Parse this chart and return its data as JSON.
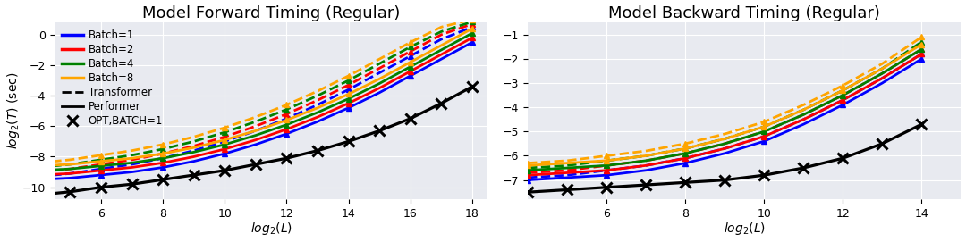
{
  "title_left": "Model Forward Timing (Regular)",
  "title_right": "Model Backward Timing (Regular)",
  "xlabel": "$log_2(L)$",
  "ylabel": "$log_2(T)$ (sec)",
  "colors": {
    "batch1": "#0000ff",
    "batch2": "#ff0000",
    "batch4": "#008000",
    "batch8": "#ffa500"
  },
  "left": {
    "xlim": [
      4.5,
      18.5
    ],
    "ylim": [
      -10.8,
      0.8
    ],
    "yticks": [
      0,
      -2,
      -4,
      -6,
      -8,
      -10
    ],
    "xticks": [
      6,
      8,
      10,
      12,
      14,
      16,
      18
    ],
    "performer_b1_x": [
      4,
      5,
      6,
      7,
      8,
      9,
      10,
      11,
      12,
      13,
      14,
      15,
      16,
      17,
      18
    ],
    "performer_b1_y": [
      -9.5,
      -9.4,
      -9.2,
      -9.0,
      -8.7,
      -8.3,
      -7.8,
      -7.2,
      -6.5,
      -5.7,
      -4.8,
      -3.8,
      -2.7,
      -1.6,
      -0.5
    ],
    "performer_b2_x": [
      4,
      5,
      6,
      7,
      8,
      9,
      10,
      11,
      12,
      13,
      14,
      15,
      16,
      17,
      18
    ],
    "performer_b2_y": [
      -9.2,
      -9.1,
      -8.9,
      -8.7,
      -8.4,
      -8.0,
      -7.5,
      -6.9,
      -6.2,
      -5.4,
      -4.5,
      -3.5,
      -2.4,
      -1.3,
      -0.2
    ],
    "performer_b4_x": [
      4,
      5,
      6,
      7,
      8,
      9,
      10,
      11,
      12,
      13,
      14,
      15,
      16,
      17,
      18
    ],
    "performer_b4_y": [
      -8.9,
      -8.8,
      -8.6,
      -8.4,
      -8.1,
      -7.7,
      -7.2,
      -6.6,
      -5.9,
      -5.1,
      -4.2,
      -3.2,
      -2.1,
      -1.0,
      0.1
    ],
    "performer_b8_x": [
      4,
      5,
      6,
      7,
      8,
      9,
      10,
      11,
      12,
      13,
      14,
      15,
      16,
      17,
      18
    ],
    "performer_b8_y": [
      -8.6,
      -8.5,
      -8.3,
      -8.1,
      -7.8,
      -7.4,
      -6.9,
      -6.3,
      -5.6,
      -4.8,
      -3.9,
      -2.9,
      -1.8,
      -0.7,
      0.4
    ],
    "transformer_b1_x": [
      4,
      5,
      6,
      7,
      8,
      9,
      10,
      11,
      12,
      13,
      14,
      15,
      16,
      17,
      18
    ],
    "transformer_b1_y": [
      -9.3,
      -9.1,
      -8.8,
      -8.5,
      -8.1,
      -7.6,
      -7.0,
      -6.3,
      -5.5,
      -4.6,
      -3.6,
      -2.5,
      -1.4,
      -0.3,
      0.5
    ],
    "transformer_b2_x": [
      4,
      5,
      6,
      7,
      8,
      9,
      10,
      11,
      12,
      13,
      14,
      15,
      16,
      17,
      18
    ],
    "transformer_b2_y": [
      -9.0,
      -8.8,
      -8.5,
      -8.2,
      -7.8,
      -7.3,
      -6.7,
      -6.0,
      -5.2,
      -4.3,
      -3.3,
      -2.2,
      -1.1,
      0.0,
      0.7
    ],
    "transformer_b4_x": [
      4,
      5,
      6,
      7,
      8,
      9,
      10,
      11,
      12,
      13,
      14,
      15,
      16,
      17,
      18
    ],
    "transformer_b4_y": [
      -8.7,
      -8.5,
      -8.2,
      -7.9,
      -7.5,
      -7.0,
      -6.4,
      -5.7,
      -4.9,
      -4.0,
      -3.0,
      -1.9,
      -0.8,
      0.2,
      0.85
    ],
    "transformer_b8_x": [
      4,
      5,
      6,
      7,
      8,
      9,
      10,
      11,
      12,
      13,
      14,
      15,
      16,
      17,
      18
    ],
    "transformer_b8_y": [
      -8.4,
      -8.2,
      -7.9,
      -7.6,
      -7.2,
      -6.7,
      -6.1,
      -5.4,
      -4.6,
      -3.7,
      -2.7,
      -1.6,
      -0.5,
      0.5,
      1.0
    ],
    "opt_x": [
      4,
      5,
      6,
      7,
      8,
      9,
      10,
      11,
      12,
      13,
      14,
      15,
      16,
      17,
      18
    ],
    "opt_y": [
      -10.5,
      -10.3,
      -10.0,
      -9.8,
      -9.5,
      -9.2,
      -8.9,
      -8.5,
      -8.1,
      -7.6,
      -7.0,
      -6.3,
      -5.5,
      -4.5,
      -3.4
    ]
  },
  "right": {
    "xlim": [
      4.0,
      15.0
    ],
    "ylim": [
      -7.8,
      -0.5
    ],
    "yticks": [
      -1,
      -2,
      -3,
      -4,
      -5,
      -6,
      -7
    ],
    "xticks": [
      6,
      8,
      10,
      12,
      14
    ],
    "performer_b1_x": [
      4,
      5,
      6,
      7,
      8,
      9,
      10,
      11,
      12,
      13,
      14
    ],
    "performer_b1_y": [
      -7.0,
      -6.9,
      -6.8,
      -6.6,
      -6.3,
      -5.9,
      -5.4,
      -4.7,
      -3.9,
      -3.0,
      -2.0
    ],
    "performer_b2_x": [
      4,
      5,
      6,
      7,
      8,
      9,
      10,
      11,
      12,
      13,
      14
    ],
    "performer_b2_y": [
      -6.8,
      -6.7,
      -6.6,
      -6.4,
      -6.1,
      -5.7,
      -5.2,
      -4.5,
      -3.7,
      -2.8,
      -1.8
    ],
    "performer_b4_x": [
      4,
      5,
      6,
      7,
      8,
      9,
      10,
      11,
      12,
      13,
      14
    ],
    "performer_b4_y": [
      -6.6,
      -6.5,
      -6.4,
      -6.2,
      -5.9,
      -5.5,
      -5.0,
      -4.3,
      -3.5,
      -2.6,
      -1.6
    ],
    "performer_b8_x": [
      4,
      5,
      6,
      7,
      8,
      9,
      10,
      11,
      12,
      13,
      14
    ],
    "performer_b8_y": [
      -6.4,
      -6.3,
      -6.2,
      -6.0,
      -5.7,
      -5.3,
      -4.8,
      -4.1,
      -3.3,
      -2.4,
      -1.4
    ],
    "transformer_b1_x": [
      4,
      5,
      6,
      7,
      8,
      9,
      10,
      11,
      12,
      13,
      14
    ],
    "transformer_b1_y": [
      -6.9,
      -6.8,
      -6.6,
      -6.4,
      -6.1,
      -5.7,
      -5.2,
      -4.5,
      -3.7,
      -2.8,
      -1.8
    ],
    "transformer_b2_x": [
      4,
      5,
      6,
      7,
      8,
      9,
      10,
      11,
      12,
      13,
      14
    ],
    "transformer_b2_y": [
      -6.7,
      -6.6,
      -6.4,
      -6.2,
      -5.9,
      -5.5,
      -5.0,
      -4.3,
      -3.5,
      -2.6,
      -1.6
    ],
    "transformer_b4_x": [
      4,
      5,
      6,
      7,
      8,
      9,
      10,
      11,
      12,
      13,
      14
    ],
    "transformer_b4_y": [
      -6.5,
      -6.4,
      -6.2,
      -6.0,
      -5.7,
      -5.3,
      -4.8,
      -4.1,
      -3.3,
      -2.4,
      -1.3
    ],
    "transformer_b8_x": [
      4,
      5,
      6,
      7,
      8,
      9,
      10,
      11,
      12,
      13,
      14
    ],
    "transformer_b8_y": [
      -6.3,
      -6.2,
      -6.0,
      -5.8,
      -5.5,
      -5.1,
      -4.6,
      -3.9,
      -3.1,
      -2.2,
      -1.1
    ],
    "opt_x": [
      4,
      5,
      6,
      7,
      8,
      9,
      10,
      11,
      12,
      13,
      14
    ],
    "opt_y": [
      -7.5,
      -7.4,
      -7.3,
      -7.2,
      -7.1,
      -7.0,
      -6.8,
      -6.5,
      -6.1,
      -5.5,
      -4.7
    ]
  },
  "bg_color": "#e8eaf0",
  "legend_fontsize": 8.5,
  "title_fontsize": 13,
  "line_width": 2.0,
  "marker_size": 4
}
